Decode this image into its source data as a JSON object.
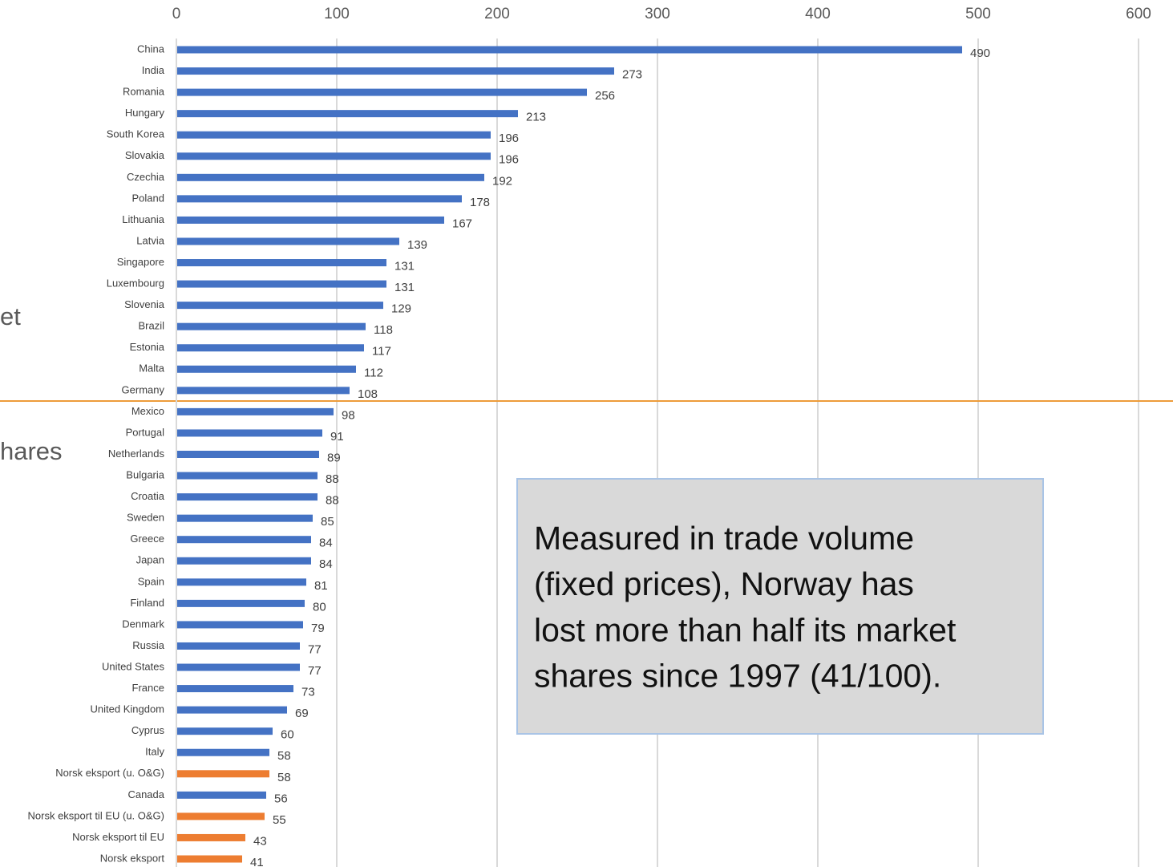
{
  "chart_data": {
    "type": "bar",
    "orientation": "horizontal",
    "categories": [
      "China",
      "India",
      "Romania",
      "Hungary",
      "South Korea",
      "Slovakia",
      "Czechia",
      "Poland",
      "Lithuania",
      "Latvia",
      "Singapore",
      "Luxembourg",
      "Slovenia",
      "Brazil",
      "Estonia",
      "Malta",
      "Germany",
      "Mexico",
      "Portugal",
      "Netherlands",
      "Bulgaria",
      "Croatia",
      "Sweden",
      "Greece",
      "Japan",
      "Spain",
      "Finland",
      "Denmark",
      "Russia",
      "United States",
      "France",
      "United Kingdom",
      "Cyprus",
      "Italy",
      "Norsk eksport (u. O&G)",
      "Canada",
      "Norsk eksport til EU (u. O&G)",
      "Norsk eksport til EU",
      "Norsk eksport"
    ],
    "values": [
      490,
      273,
      256,
      213,
      196,
      196,
      192,
      178,
      167,
      139,
      131,
      131,
      129,
      118,
      117,
      112,
      108,
      98,
      91,
      89,
      88,
      88,
      85,
      84,
      84,
      81,
      80,
      79,
      77,
      77,
      73,
      69,
      60,
      58,
      58,
      56,
      55,
      43,
      41
    ],
    "colors": [
      "#4472c4",
      "#4472c4",
      "#4472c4",
      "#4472c4",
      "#4472c4",
      "#4472c4",
      "#4472c4",
      "#4472c4",
      "#4472c4",
      "#4472c4",
      "#4472c4",
      "#4472c4",
      "#4472c4",
      "#4472c4",
      "#4472c4",
      "#4472c4",
      "#4472c4",
      "#4472c4",
      "#4472c4",
      "#4472c4",
      "#4472c4",
      "#4472c4",
      "#4472c4",
      "#4472c4",
      "#4472c4",
      "#4472c4",
      "#4472c4",
      "#4472c4",
      "#4472c4",
      "#4472c4",
      "#4472c4",
      "#4472c4",
      "#4472c4",
      "#4472c4",
      "#ed7d31",
      "#4472c4",
      "#ed7d31",
      "#ed7d31",
      "#ed7d31"
    ],
    "xlim": [
      0,
      600
    ],
    "xticks": [
      0,
      100,
      200,
      300,
      400,
      500,
      600
    ],
    "grid": true,
    "annotation": [
      "Measured in trade volume",
      "(fixed prices), Norway has",
      "lost more than half its market",
      "shares since 1997 (41/100)."
    ],
    "side_texts": [
      "et",
      "hares"
    ]
  }
}
